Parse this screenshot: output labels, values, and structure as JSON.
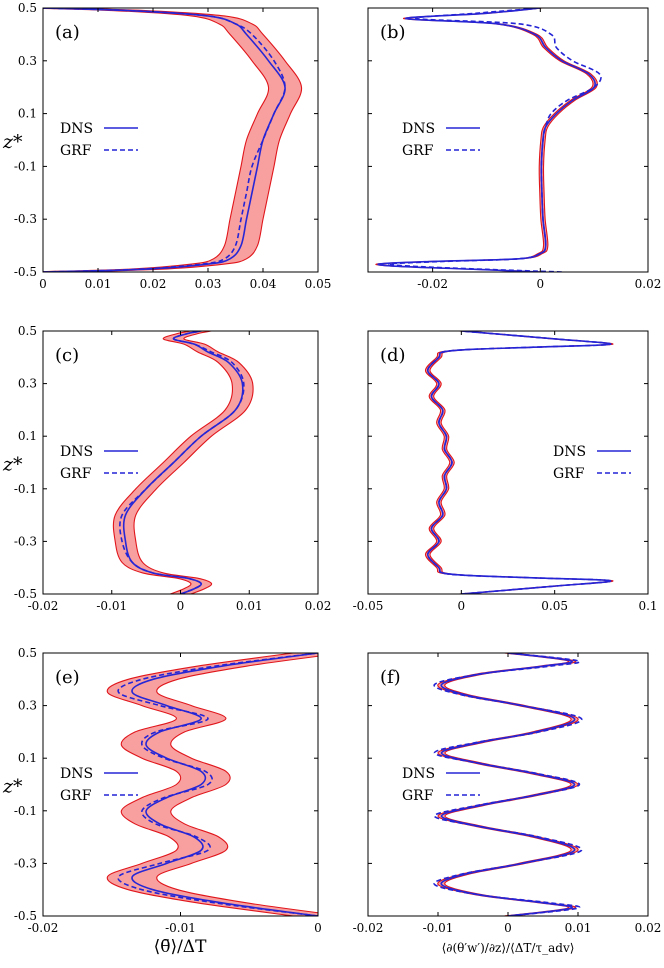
{
  "colors": {
    "dns": "#2727d6",
    "grf": "#2424d6",
    "band_fill": "#f8a0a0",
    "band_edge": "#e0161b",
    "axis": "#000000"
  },
  "x_labels": {
    "left": "⟨θ̄⟩/ΔT",
    "right": "⟨∂(θ′w′)/∂z⟩/⟨ΔT/τ_adv⟩"
  },
  "chart_data": [
    {
      "type": "line",
      "label": "(a)",
      "ylabel": "z*",
      "xlim": [
        0,
        0.05
      ],
      "ylim": [
        -0.5,
        0.5
      ],
      "xticks": [
        "0",
        "0.01",
        "0.02",
        "0.03",
        "0.04",
        "0.05"
      ],
      "yticks": [
        "0.5",
        "0.3",
        "0.1",
        "-0.1",
        "-0.3",
        "-0.5"
      ],
      "legend": [
        "DNS",
        "GRF"
      ],
      "z": [
        -0.5,
        -0.49,
        -0.47,
        -0.45,
        -0.4,
        -0.3,
        -0.2,
        -0.1,
        0,
        0.1,
        0.2,
        0.3,
        0.4,
        0.44,
        0.47,
        0.49,
        0.5
      ],
      "dns": [
        0,
        0.018,
        0.03,
        0.034,
        0.036,
        0.037,
        0.038,
        0.039,
        0.04,
        0.042,
        0.044,
        0.041,
        0.037,
        0.035,
        0.03,
        0.016,
        0
      ],
      "grf": [
        0,
        0.017,
        0.029,
        0.033,
        0.035,
        0.036,
        0.037,
        0.038,
        0.04,
        0.042,
        0.044,
        0.042,
        0.038,
        0.035,
        0.03,
        0.016,
        0
      ],
      "band": 0.003
    },
    {
      "type": "line",
      "label": "(b)",
      "ylabel": "",
      "xlim": [
        -0.032,
        0.02
      ],
      "ylim": [
        -0.5,
        0.5
      ],
      "xticks": [
        "-0.02",
        "0",
        "0.02"
      ],
      "yticks": [],
      "legend": [
        "DNS",
        "GRF"
      ],
      "z": [
        -0.5,
        -0.49,
        -0.48,
        -0.47,
        -0.46,
        -0.45,
        -0.43,
        -0.4,
        -0.3,
        -0.2,
        -0.1,
        0,
        0.05,
        0.1,
        0.15,
        0.2,
        0.25,
        0.3,
        0.35,
        0.4,
        0.44,
        0.46,
        0.48,
        0.5
      ],
      "dns": [
        0,
        -0.012,
        -0.025,
        -0.03,
        -0.02,
        -0.004,
        0,
        0.001,
        0.0005,
        0.0003,
        0.0002,
        0.0005,
        0.001,
        0.003,
        0.006,
        0.01,
        0.009,
        0.004,
        0.001,
        -0.001,
        -0.008,
        -0.025,
        -0.01,
        0
      ],
      "grf": [
        0.004,
        -0.01,
        -0.022,
        -0.028,
        -0.018,
        -0.004,
        0,
        0.001,
        0.0005,
        0.0003,
        0.0002,
        0.0005,
        0.001,
        0.002,
        0.005,
        0.01,
        0.011,
        0.006,
        0.003,
        0.002,
        -0.004,
        -0.023,
        -0.012,
        0
      ],
      "band": 0.0004
    },
    {
      "type": "line",
      "label": "(c)",
      "ylabel": "z*",
      "xlim": [
        -0.02,
        0.02
      ],
      "ylim": [
        -0.5,
        0.5
      ],
      "xticks": [
        "-0.02",
        "-0.01",
        "0",
        "0.01",
        "0.02"
      ],
      "yticks": [
        "0.5",
        "0.3",
        "0.1",
        "-0.1",
        "-0.3",
        "-0.5"
      ],
      "legend": [
        "DNS",
        "GRF"
      ],
      "z": [
        -0.5,
        -0.48,
        -0.46,
        -0.44,
        -0.42,
        -0.38,
        -0.3,
        -0.2,
        -0.1,
        0,
        0.1,
        0.2,
        0.3,
        0.38,
        0.42,
        0.45,
        0.47,
        0.49,
        0.5
      ],
      "dns": [
        0,
        0.002,
        0.003,
        0.001,
        -0.004,
        -0.007,
        -0.008,
        -0.008,
        -0.005,
        -0.001,
        0.003,
        0.008,
        0.009,
        0.007,
        0.004,
        0.002,
        -0.001,
        0.001,
        0.003
      ],
      "grf": [
        0,
        0.002,
        0.003,
        0.001,
        -0.004,
        -0.007,
        -0.0085,
        -0.0085,
        -0.005,
        -0.001,
        0.003,
        0.008,
        0.0092,
        0.0075,
        0.0045,
        0.002,
        -0.001,
        0.001,
        0.003
      ],
      "band": 0.0015
    },
    {
      "type": "line",
      "label": "(d)",
      "ylabel": "",
      "xlim": [
        -0.05,
        0.1
      ],
      "ylim": [
        -0.5,
        0.5
      ],
      "xticks": [
        "-0.05",
        "0",
        "0.05",
        "0.1"
      ],
      "yticks": [],
      "legend": [
        "DNS",
        "GRF"
      ],
      "z": [
        -0.5,
        -0.47,
        -0.45,
        -0.44,
        -0.43,
        -0.42,
        -0.4,
        -0.35,
        -0.3,
        -0.25,
        -0.2,
        -0.15,
        -0.1,
        -0.05,
        0,
        0.05,
        0.1,
        0.15,
        0.2,
        0.25,
        0.3,
        0.35,
        0.4,
        0.42,
        0.43,
        0.44,
        0.45,
        0.47,
        0.5
      ],
      "dns": [
        0,
        0.05,
        0.08,
        0.045,
        0.005,
        -0.01,
        -0.012,
        -0.018,
        -0.012,
        -0.016,
        -0.01,
        -0.012,
        -0.008,
        -0.009,
        -0.005,
        -0.009,
        -0.008,
        -0.012,
        -0.01,
        -0.016,
        -0.012,
        -0.018,
        -0.012,
        -0.01,
        0.005,
        0.045,
        0.08,
        0.05,
        0
      ],
      "grf": [
        0,
        0.05,
        0.08,
        0.045,
        0.005,
        -0.01,
        -0.012,
        -0.018,
        -0.012,
        -0.016,
        -0.01,
        -0.012,
        -0.008,
        -0.009,
        -0.005,
        -0.009,
        -0.008,
        -0.012,
        -0.01,
        -0.016,
        -0.012,
        -0.018,
        -0.012,
        -0.01,
        0.005,
        0.045,
        0.08,
        0.05,
        0
      ],
      "band": 0.0012
    },
    {
      "type": "line",
      "label": "(e)",
      "ylabel": "z*",
      "xlim": [
        -0.02,
        0
      ],
      "ylim": [
        -0.5,
        0.5
      ],
      "xticks": [
        "-0.02",
        "-0.01",
        "0"
      ],
      "yticks": [
        "0.5",
        "0.3",
        "0.1",
        "-0.1",
        "-0.3",
        "-0.5"
      ],
      "legend": [
        "DNS",
        "GRF"
      ],
      "z": [
        -0.5,
        -0.45,
        -0.4,
        -0.35,
        -0.3,
        -0.25,
        -0.2,
        -0.15,
        -0.1,
        -0.05,
        0,
        0.05,
        0.1,
        0.15,
        0.2,
        0.25,
        0.3,
        0.35,
        0.4,
        0.45,
        0.5
      ],
      "dns": [
        0,
        -0.007,
        -0.012,
        -0.0135,
        -0.011,
        -0.0085,
        -0.009,
        -0.0115,
        -0.0125,
        -0.011,
        -0.0085,
        -0.0085,
        -0.011,
        -0.0125,
        -0.0115,
        -0.0085,
        -0.011,
        -0.0135,
        -0.012,
        -0.007,
        0
      ],
      "grf": [
        0,
        -0.0075,
        -0.0128,
        -0.0145,
        -0.0115,
        -0.008,
        -0.0088,
        -0.0118,
        -0.0128,
        -0.0112,
        -0.008,
        -0.0082,
        -0.0112,
        -0.0128,
        -0.0118,
        -0.008,
        -0.0115,
        -0.0145,
        -0.0128,
        -0.0075,
        0
      ],
      "band": 0.0018
    },
    {
      "type": "line",
      "label": "(f)",
      "ylabel": "",
      "xlim": [
        -0.02,
        0.02
      ],
      "ylim": [
        -0.5,
        0.5
      ],
      "xticks": [
        "-0.02",
        "-0.01",
        "0",
        "0.01",
        "0.02"
      ],
      "yticks": [],
      "legend": [
        "DNS",
        "GRF"
      ],
      "z": [
        -0.5,
        -0.47,
        -0.45,
        -0.42,
        -0.38,
        -0.34,
        -0.3,
        -0.25,
        -0.2,
        -0.16,
        -0.12,
        -0.08,
        -0.04,
        0,
        0.04,
        0.08,
        0.12,
        0.16,
        0.2,
        0.25,
        0.3,
        0.34,
        0.38,
        0.42,
        0.45,
        0.47,
        0.5
      ],
      "dns": [
        0,
        0.009,
        0.005,
        -0.004,
        -0.0095,
        -0.006,
        0.002,
        0.0095,
        0.004,
        -0.004,
        -0.0095,
        -0.004,
        0.004,
        0.0095,
        0.004,
        -0.004,
        -0.0095,
        -0.004,
        0.004,
        0.0095,
        0.002,
        -0.006,
        -0.0095,
        -0.004,
        0.005,
        0.009,
        0
      ],
      "grf": [
        0,
        0.01,
        0.006,
        -0.004,
        -0.0105,
        -0.0065,
        0.002,
        0.0105,
        0.0045,
        -0.004,
        -0.0105,
        -0.0045,
        0.004,
        0.0102,
        0.0045,
        -0.004,
        -0.0105,
        -0.0045,
        0.0045,
        0.0105,
        0.002,
        -0.0065,
        -0.0105,
        -0.004,
        0.006,
        0.01,
        0
      ],
      "band": 0.0005
    }
  ]
}
